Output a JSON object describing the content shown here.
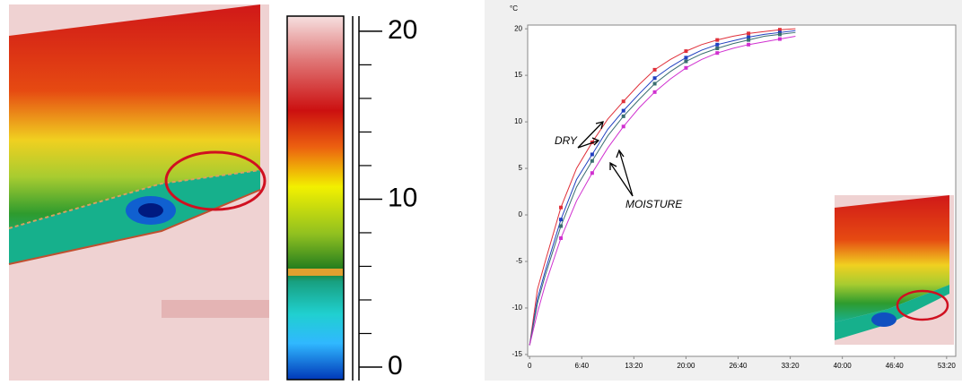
{
  "chart_data": [
    {
      "type": "colorbar",
      "ylim": [
        -0.8,
        20.9
      ],
      "yticks": [
        0,
        10,
        20
      ],
      "minor_yticks": [
        2,
        4,
        6,
        8,
        12,
        14,
        16,
        18
      ]
    },
    {
      "type": "line",
      "y_unit": "°C",
      "x": [
        0,
        60,
        120,
        240,
        360,
        480,
        600,
        720,
        840,
        960,
        1080,
        1200,
        1320,
        1440,
        1560,
        1680,
        1800,
        1920,
        2040
      ],
      "series": [
        {
          "color": "#e0303a",
          "values": [
            -14,
            -8,
            -5,
            0.8,
            5,
            7.8,
            10.3,
            12.2,
            14,
            15.6,
            16.7,
            17.6,
            18.3,
            18.8,
            19.2,
            19.5,
            19.7,
            19.9,
            20
          ]
        },
        {
          "color": "#2040c0",
          "values": [
            -14,
            -9,
            -6,
            -0.5,
            3.8,
            6.5,
            9.2,
            11.2,
            13,
            14.7,
            15.9,
            16.9,
            17.7,
            18.3,
            18.7,
            19.1,
            19.4,
            19.6,
            19.8
          ]
        },
        {
          "color": "#3a6e70",
          "values": [
            -14,
            -9.5,
            -6.5,
            -1.2,
            3,
            5.8,
            8.5,
            10.6,
            12.4,
            14.1,
            15.4,
            16.5,
            17.3,
            17.9,
            18.4,
            18.8,
            19.2,
            19.4,
            19.6
          ]
        },
        {
          "color": "#d030d0",
          "values": [
            -14,
            -10.5,
            -7.5,
            -2.5,
            1.5,
            4.5,
            7.2,
            9.5,
            11.5,
            13.2,
            14.6,
            15.8,
            16.7,
            17.4,
            17.9,
            18.3,
            18.6,
            18.9,
            19.2
          ]
        }
      ],
      "xlim": [
        -15,
        3270
      ],
      "ylim": [
        -15.2,
        20.4
      ],
      "xticks": [
        {
          "value": 0,
          "label": "0"
        },
        {
          "value": 400,
          "label": "6:40"
        },
        {
          "value": 800,
          "label": "13:20"
        },
        {
          "value": 1200,
          "label": "20:00"
        },
        {
          "value": 1600,
          "label": "26:40"
        },
        {
          "value": 2000,
          "label": "33:20"
        },
        {
          "value": 2400,
          "label": "40:00"
        },
        {
          "value": 2800,
          "label": "46:40"
        },
        {
          "value": 3200,
          "label": "53:20"
        }
      ],
      "yticks": [
        -15,
        -10,
        -5,
        0,
        5,
        10,
        15,
        20
      ],
      "annotations": [
        "DRY",
        "MOISTURE"
      ]
    }
  ]
}
